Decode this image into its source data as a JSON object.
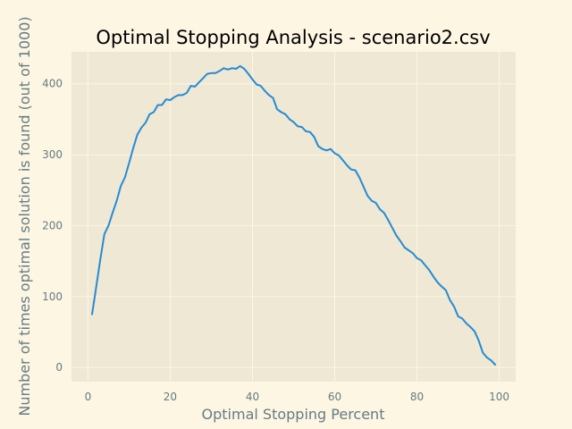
{
  "chart_data": {
    "type": "line",
    "title": "Optimal Stopping Analysis - scenario2.csv",
    "xlabel": "Optimal Stopping Percent",
    "ylabel": "Number of times optimal solution is found (out of 1000)",
    "xlim": [
      -4.0,
      104.0
    ],
    "ylim": [
      -20,
      445
    ],
    "xticks": [
      0,
      20,
      40,
      60,
      80,
      100
    ],
    "yticks": [
      0,
      100,
      200,
      300,
      400
    ],
    "grid": true,
    "colors": {
      "page_background": "#fdf6e3",
      "plot_background": "#eee8d5",
      "grid": "#fdf6e3",
      "line": "#268bd2",
      "axis_text": "#657b83",
      "title": "#000000"
    },
    "series": [
      {
        "x": [
          1,
          2,
          3,
          4,
          5,
          6,
          7,
          8,
          9,
          10,
          11,
          12,
          13,
          14,
          15,
          16,
          17,
          18,
          19,
          20,
          21,
          22,
          23,
          24,
          25,
          26,
          27,
          28,
          29,
          30,
          31,
          32,
          33,
          34,
          35,
          36,
          37,
          38,
          39,
          40,
          41,
          42,
          43,
          44,
          45,
          46,
          47,
          48,
          49,
          50,
          51,
          52,
          53,
          54,
          55,
          56,
          57,
          58,
          59,
          60,
          61,
          62,
          63,
          64,
          65,
          66,
          67,
          68,
          69,
          70,
          71,
          72,
          73,
          74,
          75,
          76,
          77,
          78,
          79,
          80,
          81,
          82,
          83,
          84,
          85,
          86,
          87,
          88,
          89,
          90,
          91,
          92,
          93,
          94,
          95,
          96,
          97,
          98,
          99
        ],
        "y": [
          75,
          113,
          152,
          188,
          200,
          218,
          235,
          256,
          268,
          288,
          309,
          328,
          338,
          345,
          357,
          360,
          370,
          370,
          378,
          377,
          381,
          384,
          384,
          387,
          397,
          396,
          402,
          408,
          414,
          415,
          415,
          418,
          422,
          420,
          422,
          421,
          425,
          421,
          414,
          406,
          399,
          397,
          390,
          384,
          380,
          364,
          360,
          357,
          350,
          346,
          340,
          339,
          333,
          332,
          325,
          312,
          308,
          306,
          308,
          302,
          299,
          292,
          285,
          279,
          278,
          268,
          255,
          242,
          235,
          232,
          223,
          218,
          208,
          197,
          186,
          178,
          169,
          165,
          161,
          154,
          151,
          144,
          137,
          128,
          120,
          114,
          109,
          95,
          86,
          72,
          69,
          62,
          57,
          51,
          38,
          21,
          14,
          10,
          4
        ]
      }
    ]
  }
}
